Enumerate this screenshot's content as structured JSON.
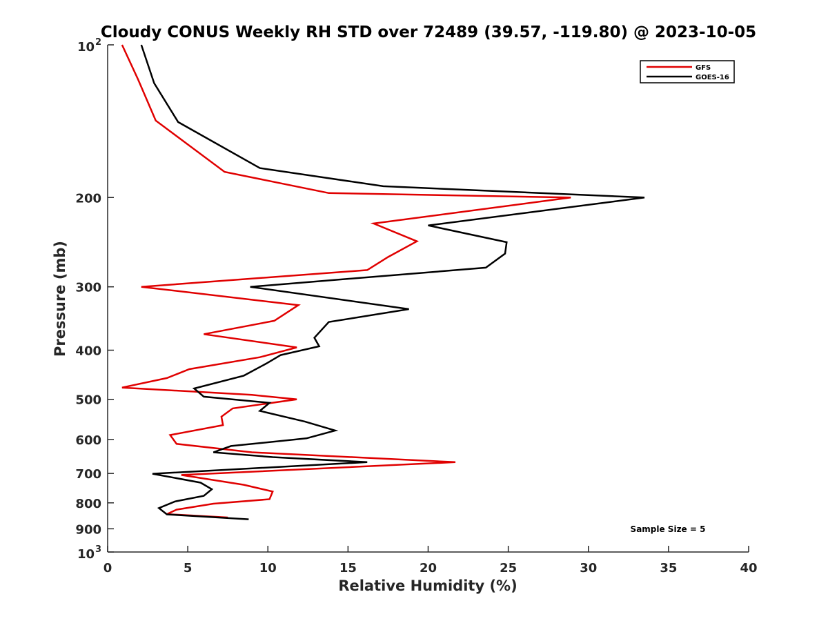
{
  "chart_data": {
    "type": "line",
    "title": "Cloudy CONUS Weekly RH STD over 72489 (39.57, -119.80) @ 2023-10-05",
    "xlabel": "Relative Humidity (%)",
    "ylabel": "Pressure (mb)",
    "xlim": [
      0,
      40
    ],
    "ylim": [
      100,
      1000
    ],
    "y_scale": "log",
    "y_reversed": true,
    "x_ticks": [
      "0",
      "5",
      "10",
      "15",
      "20",
      "25",
      "30",
      "35",
      "40"
    ],
    "y_ticks": [
      {
        "value": 100,
        "label": "10",
        "exp": "2"
      },
      {
        "value": 200,
        "label": "200"
      },
      {
        "value": 300,
        "label": "300"
      },
      {
        "value": 400,
        "label": "400"
      },
      {
        "value": 500,
        "label": "500"
      },
      {
        "value": 600,
        "label": "600"
      },
      {
        "value": 700,
        "label": "700"
      },
      {
        "value": 800,
        "label": "800"
      },
      {
        "value": 900,
        "label": "900"
      },
      {
        "value": 1000,
        "label": "10",
        "exp": "3"
      }
    ],
    "grid": false,
    "legend_position": "top-right",
    "annotation": "Sample Size = 5",
    "series": [
      {
        "name": "GFS",
        "color": "#e00000",
        "x": [
          0.9,
          1.9,
          3.0,
          7.3,
          13.8,
          28.9,
          16.6,
          19.3,
          17.5,
          16.2,
          2.1,
          11.9,
          10.4,
          6.0,
          11.8,
          9.5,
          5.1,
          3.7,
          0.9,
          9.0,
          11.8,
          7.8,
          7.1,
          7.2,
          3.9,
          4.3,
          9.0,
          21.7,
          4.6,
          8.5,
          10.3,
          10.1,
          6.6,
          4.3,
          3.7,
          7.5
        ],
        "y": [
          100,
          117,
          141,
          178,
          196,
          200,
          225,
          244,
          262,
          278,
          300,
          326,
          350,
          372,
          395,
          413,
          436,
          454,
          474,
          490,
          500,
          521,
          541,
          562,
          588,
          612,
          636,
          665,
          705,
          737,
          760,
          787,
          803,
          825,
          842,
          855
        ]
      },
      {
        "name": "GOES-16",
        "color": "#000000",
        "x": [
          2.1,
          2.9,
          4.4,
          9.5,
          17.2,
          33.5,
          20.0,
          24.9,
          24.8,
          23.6,
          8.9,
          18.8,
          13.8,
          12.9,
          13.2,
          10.8,
          9.9,
          8.5,
          5.4,
          6.0,
          10.1,
          9.5,
          12.3,
          14.2,
          12.4,
          7.7,
          6.6,
          10.3,
          16.2,
          2.8,
          5.8,
          6.5,
          6.0,
          4.2,
          3.2,
          3.7,
          8.8
        ],
        "y": [
          100,
          119,
          142,
          175,
          190,
          200,
          227,
          245,
          258,
          275,
          300,
          332,
          352,
          378,
          393,
          409,
          425,
          449,
          476,
          494,
          508,
          527,
          553,
          576,
          597,
          618,
          636,
          650,
          665,
          701,
          730,
          752,
          775,
          795,
          819,
          843,
          862
        ]
      }
    ]
  }
}
